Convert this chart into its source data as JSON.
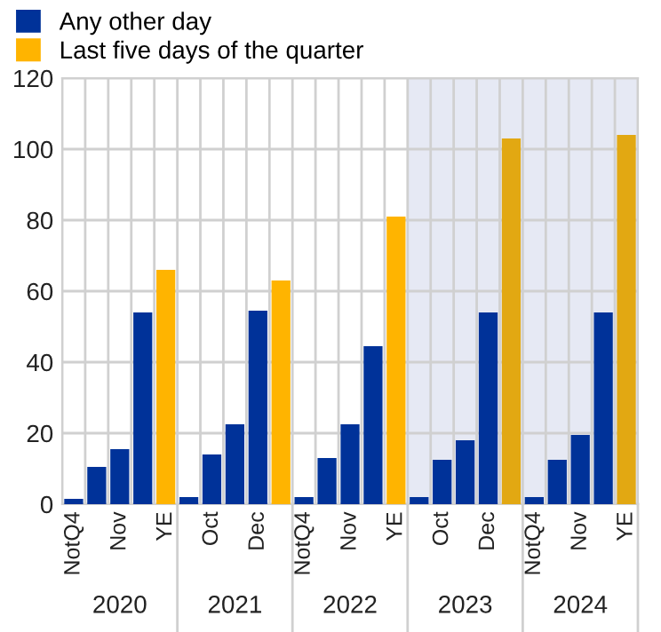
{
  "chart_data": {
    "type": "bar",
    "categories": [
      "NotQ4",
      null,
      "Nov",
      null,
      "YE",
      null,
      "Oct",
      null,
      "Dec",
      null,
      "NotQ4",
      null,
      "Nov",
      null,
      "YE",
      null,
      "Oct",
      null,
      "Dec",
      null,
      "NotQ4",
      null,
      "Nov",
      null,
      "YE"
    ],
    "series": [
      {
        "name": "Any other day",
        "color": "#003299",
        "values": [
          1.5,
          10.5,
          15.5,
          54,
          null,
          2,
          14,
          22.5,
          54.5,
          null,
          2,
          13,
          22.5,
          44.5,
          null,
          2,
          12.5,
          18,
          54,
          null,
          2,
          12.5,
          19.5,
          54,
          null
        ]
      },
      {
        "name": "Last five days of the quarter",
        "color": "#ffb400",
        "colors": [
          "#ffb400",
          "#ffb400",
          "#ffb400",
          "#ffb400",
          "#ffb400",
          "#ffb400",
          "#ffb400",
          "#ffb400",
          "#ffb400",
          "#ffb400",
          "#ffb400",
          "#ffb400",
          "#ffb400",
          "#ffb400",
          "#ffb400",
          "#ffb400",
          "#ffb400",
          "#ffb400",
          "#ffb400",
          "#e2a812",
          "#ffb400",
          "#ffb400",
          "#ffb400",
          "#ffb400",
          "#e2a812"
        ],
        "values": [
          null,
          null,
          null,
          null,
          66,
          null,
          null,
          null,
          null,
          63,
          null,
          null,
          null,
          null,
          81,
          null,
          null,
          null,
          null,
          103,
          null,
          null,
          null,
          null,
          104
        ]
      }
    ],
    "ylim": [
      0,
      120
    ],
    "yticks": [
      0,
      20,
      40,
      60,
      80,
      100,
      120
    ],
    "annotations": [
      "2020",
      "2021",
      "2022",
      "2023",
      "2024"
    ],
    "grid": true,
    "legend": "top left"
  }
}
